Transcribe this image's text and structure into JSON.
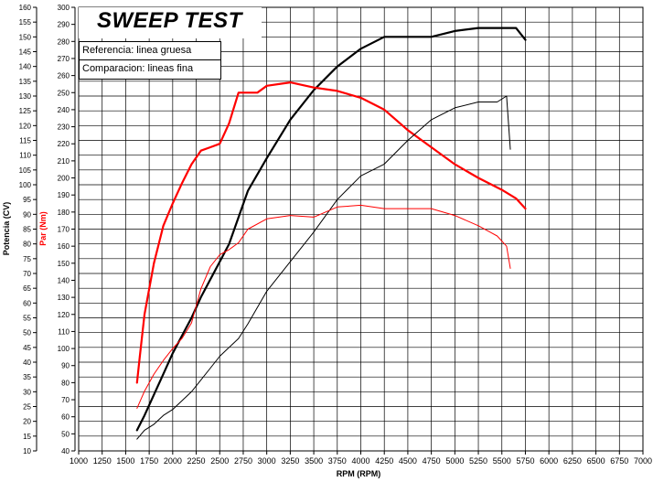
{
  "chart_data": {
    "type": "line",
    "title": "SWEEP TEST",
    "xlabel": "RPM (RPM)",
    "ylabel_left_outer": "Potencia (CV)",
    "ylabel_left_inner": "Par (Nm)",
    "xlim": [
      1000,
      7000
    ],
    "x_ticks": [
      1000,
      1250,
      1500,
      1750,
      2000,
      2250,
      2500,
      2750,
      3000,
      3250,
      3500,
      3750,
      4000,
      4250,
      4500,
      4750,
      5000,
      5250,
      5500,
      5750,
      6000,
      6250,
      6500,
      6750,
      7000
    ],
    "y_left_outer_ticks": [
      10,
      15,
      20,
      25,
      30,
      35,
      40,
      45,
      50,
      55,
      60,
      65,
      70,
      75,
      80,
      85,
      90,
      95,
      100,
      105,
      110,
      115,
      120,
      125,
      130,
      135,
      140,
      145,
      150,
      155,
      160
    ],
    "y_left_inner_ticks": [
      40,
      50,
      60,
      70,
      80,
      90,
      100,
      110,
      120,
      130,
      140,
      150,
      160,
      170,
      180,
      190,
      200,
      210,
      220,
      230,
      240,
      250,
      260,
      270,
      280,
      290,
      300
    ],
    "grid": true,
    "legend": [
      {
        "label": "Referencia: linea gruesa"
      },
      {
        "label": "Comparacion: lineas fina"
      }
    ],
    "series": [
      {
        "axis": "potencia",
        "style": "thick",
        "color": "#000000",
        "x": [
          1620,
          1700,
          1800,
          1900,
          2000,
          2100,
          2200,
          2300,
          2400,
          2500,
          2600,
          2700,
          2800,
          3000,
          3250,
          3500,
          3750,
          4000,
          4250,
          4500,
          4750,
          5000,
          5250,
          5500,
          5650,
          5750
        ],
        "y": [
          17,
          22,
          29,
          36,
          43,
          49,
          55,
          62,
          68,
          74,
          80,
          89,
          98,
          109,
          122,
          132,
          140,
          146,
          150,
          150,
          150,
          152,
          153,
          153,
          153,
          149
        ]
      },
      {
        "axis": "par",
        "style": "thick",
        "color": "#ff0000",
        "x": [
          1620,
          1650,
          1700,
          1800,
          1900,
          2000,
          2100,
          2200,
          2300,
          2400,
          2500,
          2600,
          2700,
          2800,
          2900,
          3000,
          3250,
          3500,
          3750,
          4000,
          4250,
          4500,
          4750,
          5000,
          5250,
          5500,
          5650,
          5750
        ],
        "y": [
          80,
          95,
          120,
          150,
          172,
          185,
          197,
          208,
          216,
          218,
          220,
          232,
          250,
          250,
          250,
          254,
          256,
          253,
          251,
          247,
          240,
          228,
          218,
          208,
          200,
          193,
          188,
          182
        ]
      },
      {
        "axis": "potencia",
        "style": "thin",
        "color": "#000000",
        "x": [
          1620,
          1700,
          1800,
          1900,
          2000,
          2100,
          2200,
          2300,
          2400,
          2500,
          2600,
          2700,
          2800,
          3000,
          3250,
          3500,
          3750,
          4000,
          4250,
          4500,
          4750,
          5000,
          5250,
          5450,
          5550,
          5590
        ],
        "y": [
          14,
          17,
          19,
          22,
          24,
          27,
          30,
          34,
          38,
          42,
          45,
          48,
          53,
          64,
          74,
          84,
          95,
          103,
          107,
          115,
          122,
          126,
          128,
          128,
          130,
          112
        ]
      },
      {
        "axis": "par",
        "style": "thin",
        "color": "#ff0000",
        "x": [
          1620,
          1700,
          1800,
          1900,
          2000,
          2100,
          2200,
          2300,
          2400,
          2500,
          2600,
          2700,
          2800,
          3000,
          3250,
          3500,
          3750,
          4000,
          4250,
          4500,
          4750,
          5000,
          5250,
          5450,
          5550,
          5590
        ],
        "y": [
          65,
          75,
          85,
          93,
          100,
          106,
          115,
          135,
          148,
          155,
          158,
          162,
          170,
          176,
          178,
          177,
          183,
          184,
          182,
          182,
          182,
          178,
          172,
          166,
          160,
          147
        ]
      }
    ]
  }
}
